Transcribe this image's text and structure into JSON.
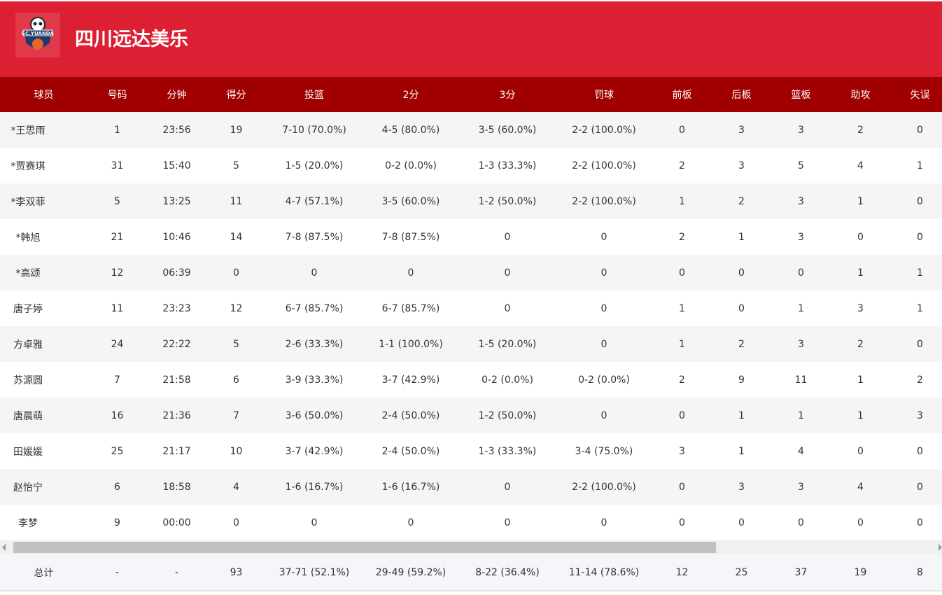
{
  "team": {
    "name": "四川远达美乐",
    "logo_text": "SC.YUANDA",
    "brand_color": "#dc1f32",
    "header_color": "#a00000"
  },
  "columns": [
    "球员",
    "号码",
    "分钟",
    "得分",
    "投篮",
    "2分",
    "3分",
    "罚球",
    "前板",
    "后板",
    "篮板",
    "助攻",
    "失误"
  ],
  "rows": [
    [
      "*王思雨",
      "1",
      "23:56",
      "19",
      "7-10 (70.0%)",
      "4-5 (80.0%)",
      "3-5 (60.0%)",
      "2-2 (100.0%)",
      "0",
      "3",
      "3",
      "2",
      "0"
    ],
    [
      "*贾赛琪",
      "31",
      "15:40",
      "5",
      "1-5 (20.0%)",
      "0-2 (0.0%)",
      "1-3 (33.3%)",
      "2-2 (100.0%)",
      "2",
      "3",
      "5",
      "4",
      "1"
    ],
    [
      "*李双菲",
      "5",
      "13:25",
      "11",
      "4-7 (57.1%)",
      "3-5 (60.0%)",
      "1-2 (50.0%)",
      "2-2 (100.0%)",
      "1",
      "2",
      "3",
      "1",
      "0"
    ],
    [
      "*韩旭",
      "21",
      "10:46",
      "14",
      "7-8 (87.5%)",
      "7-8 (87.5%)",
      "0",
      "0",
      "2",
      "1",
      "3",
      "0",
      "0"
    ],
    [
      "*高颂",
      "12",
      "06:39",
      "0",
      "0",
      "0",
      "0",
      "0",
      "0",
      "0",
      "0",
      "1",
      "1"
    ],
    [
      "唐子婷",
      "11",
      "23:23",
      "12",
      "6-7 (85.7%)",
      "6-7 (85.7%)",
      "0",
      "0",
      "1",
      "0",
      "1",
      "3",
      "1"
    ],
    [
      "方卓雅",
      "24",
      "22:22",
      "5",
      "2-6 (33.3%)",
      "1-1 (100.0%)",
      "1-5 (20.0%)",
      "0",
      "1",
      "2",
      "3",
      "2",
      "0"
    ],
    [
      "苏源圆",
      "7",
      "21:58",
      "6",
      "3-9 (33.3%)",
      "3-7 (42.9%)",
      "0-2 (0.0%)",
      "0-2 (0.0%)",
      "2",
      "9",
      "11",
      "1",
      "2"
    ],
    [
      "唐晨萌",
      "16",
      "21:36",
      "7",
      "3-6 (50.0%)",
      "2-4 (50.0%)",
      "1-2 (50.0%)",
      "0",
      "0",
      "1",
      "1",
      "1",
      "3"
    ],
    [
      "田媛媛",
      "25",
      "21:17",
      "10",
      "3-7 (42.9%)",
      "2-4 (50.0%)",
      "1-3 (33.3%)",
      "3-4 (75.0%)",
      "3",
      "1",
      "4",
      "0",
      "0"
    ],
    [
      "赵怡宁",
      "6",
      "18:58",
      "4",
      "1-6 (16.7%)",
      "1-6 (16.7%)",
      "0",
      "2-2 (100.0%)",
      "0",
      "3",
      "3",
      "4",
      "0"
    ],
    [
      "李梦",
      "9",
      "00:00",
      "0",
      "0",
      "0",
      "0",
      "0",
      "0",
      "0",
      "0",
      "0",
      "0"
    ]
  ],
  "total": [
    "总计",
    "-",
    "-",
    "93",
    "37-71 (52.1%)",
    "29-49 (59.2%)",
    "8-22 (36.4%)",
    "11-14 (78.6%)",
    "12",
    "25",
    "37",
    "19",
    "8"
  ]
}
